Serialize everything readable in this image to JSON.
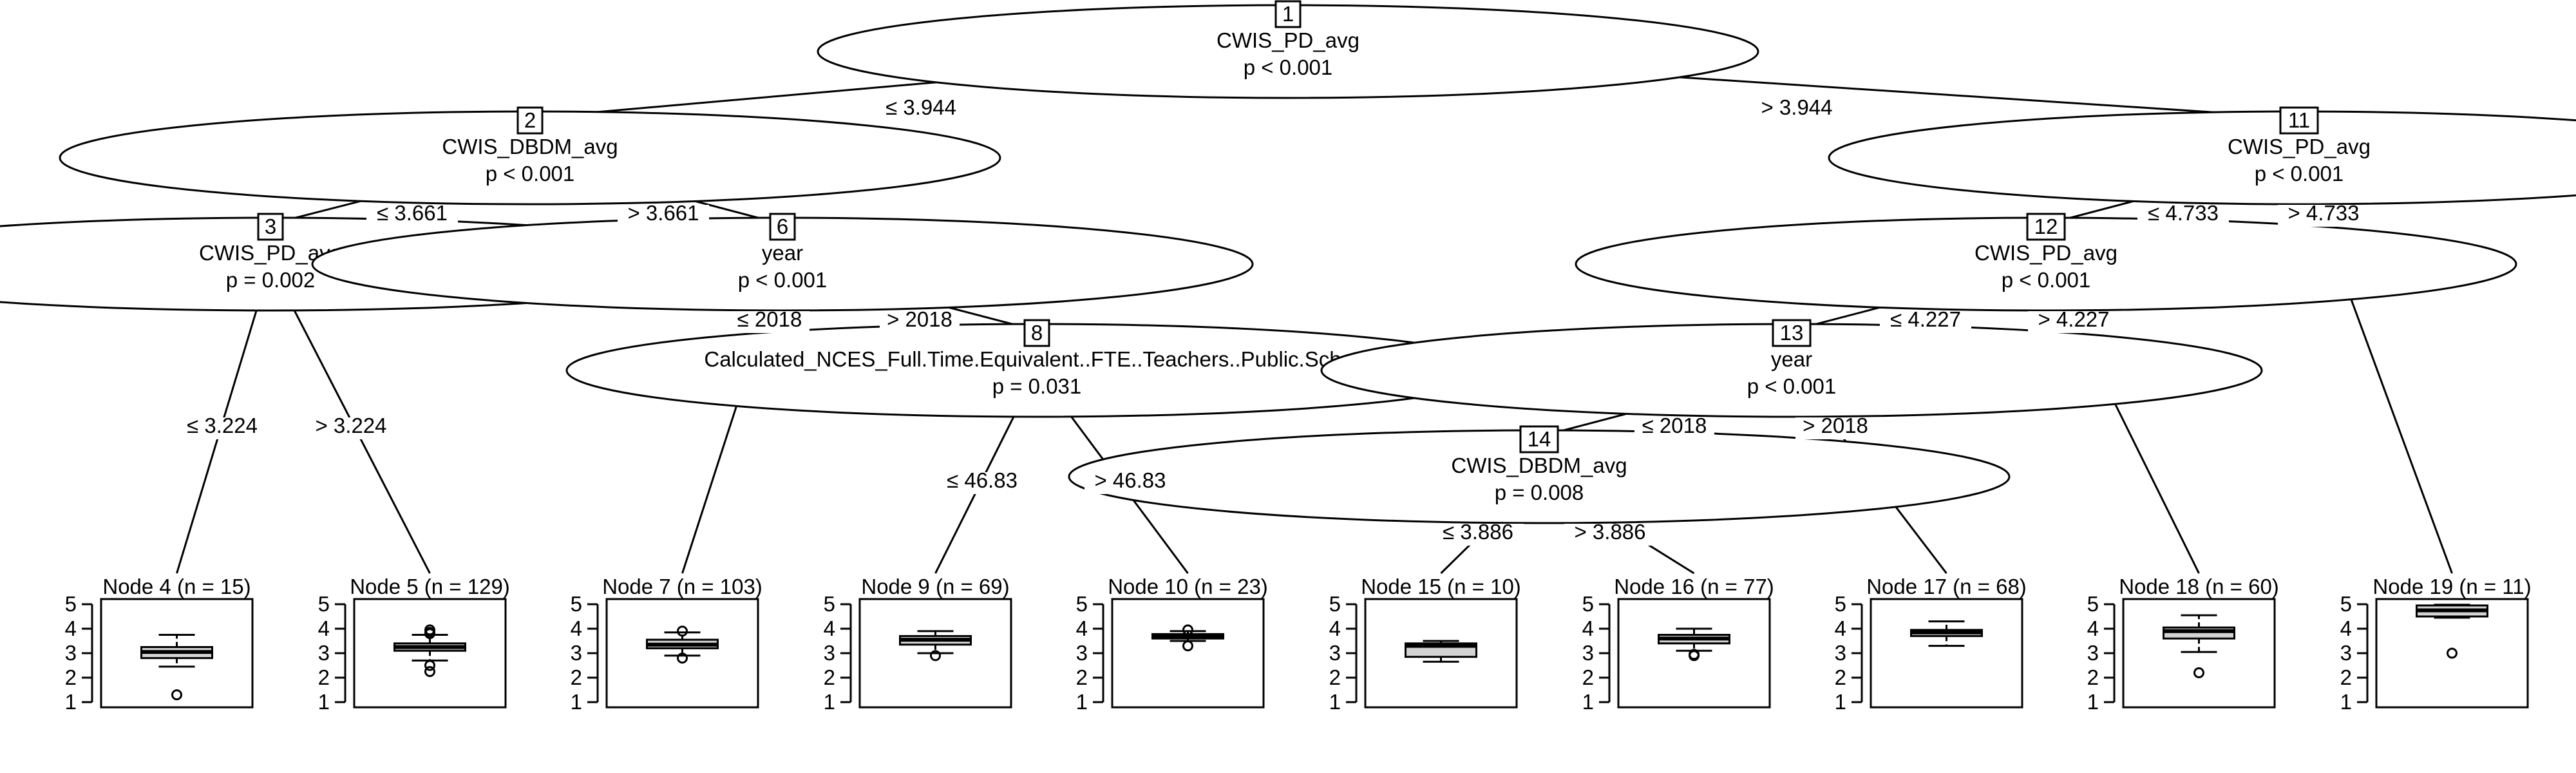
{
  "colors": {
    "box_fill": "#d3d3d3",
    "stroke": "#000000",
    "background": "#ffffff"
  },
  "edges": [
    {
      "from": "1",
      "to": "2",
      "label": "≤ 3.944"
    },
    {
      "from": "1",
      "to": "11",
      "label": "> 3.944"
    },
    {
      "from": "2",
      "to": "3",
      "label": "≤ 3.661"
    },
    {
      "from": "2",
      "to": "6",
      "label": "> 3.661"
    },
    {
      "from": "3",
      "to": "4",
      "label": "≤ 3.224"
    },
    {
      "from": "3",
      "to": "5",
      "label": "> 3.224"
    },
    {
      "from": "6",
      "to": "7",
      "label": "≤ 2018"
    },
    {
      "from": "6",
      "to": "8",
      "label": "> 2018"
    },
    {
      "from": "8",
      "to": "9",
      "label": "≤ 46.83"
    },
    {
      "from": "8",
      "to": "10",
      "label": "> 46.83"
    },
    {
      "from": "11",
      "to": "12",
      "label": "≤ 4.733"
    },
    {
      "from": "11",
      "to": "19",
      "label": "> 4.733"
    },
    {
      "from": "12",
      "to": "13",
      "label": "≤ 4.227"
    },
    {
      "from": "12",
      "to": "18",
      "label": "> 4.227"
    },
    {
      "from": "13",
      "to": "14",
      "label": "≤ 2018"
    },
    {
      "from": "13",
      "to": "17",
      "label": "> 2018"
    },
    {
      "from": "14",
      "to": "15",
      "label": "≤ 3.886"
    },
    {
      "from": "14",
      "to": "16",
      "label": "> 3.886"
    }
  ],
  "inner_nodes": [
    {
      "id": "1",
      "variable": "CWIS_PD_avg",
      "p": "p < 0.001"
    },
    {
      "id": "2",
      "variable": "CWIS_DBDM_avg",
      "p": "p < 0.001"
    },
    {
      "id": "3",
      "variable": "CWIS_PD_avg",
      "p": "p = 0.002"
    },
    {
      "id": "6",
      "variable": "year",
      "p": "p < 0.001"
    },
    {
      "id": "8",
      "variable": "Calculated_NCES_Full.Time.Equivalent..FTE..Teachers..Public.School",
      "p": "p = 0.031"
    },
    {
      "id": "11",
      "variable": "CWIS_PD_avg",
      "p": "p < 0.001"
    },
    {
      "id": "12",
      "variable": "CWIS_PD_avg",
      "p": "p < 0.001"
    },
    {
      "id": "13",
      "variable": "year",
      "p": "p < 0.001"
    },
    {
      "id": "14",
      "variable": "CWIS_DBDM_avg",
      "p": "p = 0.008"
    }
  ],
  "chart_data": {
    "type": "boxplot",
    "y_ticks": [
      "1",
      "2",
      "3",
      "4",
      "5"
    ],
    "ylim": [
      1,
      5
    ],
    "panels": [
      {
        "id": "4",
        "title": "Node 4 (n = 15)",
        "min": 2.45,
        "q1": 2.8,
        "median": 3.05,
        "q3": 3.25,
        "max": 3.75,
        "outliers": [
          1.3
        ]
      },
      {
        "id": "5",
        "title": "Node 5 (n = 129)",
        "min": 2.7,
        "q1": 3.1,
        "median": 3.25,
        "q3": 3.4,
        "max": 3.75,
        "outliers": [
          2.25,
          2.5,
          3.8,
          3.85,
          3.95
        ]
      },
      {
        "id": "7",
        "title": "Node 7 (n = 103)",
        "min": 2.9,
        "q1": 3.2,
        "median": 3.35,
        "q3": 3.55,
        "max": 3.85,
        "outliers": [
          2.8,
          3.9
        ]
      },
      {
        "id": "9",
        "title": "Node 9 (n = 69)",
        "min": 3.0,
        "q1": 3.35,
        "median": 3.55,
        "q3": 3.7,
        "max": 3.9,
        "outliers": [
          2.9
        ]
      },
      {
        "id": "10",
        "title": "Node 10 (n = 23)",
        "min": 3.5,
        "q1": 3.6,
        "median": 3.7,
        "q3": 3.78,
        "max": 3.9,
        "outliers": [
          3.3,
          3.95
        ]
      },
      {
        "id": "15",
        "title": "Node 15 (n = 10)",
        "min": 2.65,
        "q1": 2.85,
        "median": 3.3,
        "q3": 3.4,
        "max": 3.5,
        "outliers": []
      },
      {
        "id": "16",
        "title": "Node 16 (n = 77)",
        "min": 3.1,
        "q1": 3.4,
        "median": 3.6,
        "q3": 3.75,
        "max": 4.0,
        "outliers": [
          2.9,
          2.95
        ]
      },
      {
        "id": "17",
        "title": "Node 17 (n = 68)",
        "min": 3.3,
        "q1": 3.7,
        "median": 3.85,
        "q3": 3.95,
        "max": 4.3,
        "outliers": []
      },
      {
        "id": "18",
        "title": "Node 18 (n = 60)",
        "min": 3.05,
        "q1": 3.6,
        "median": 3.9,
        "q3": 4.05,
        "max": 4.55,
        "outliers": [
          2.2
        ]
      },
      {
        "id": "19",
        "title": "Node 19 (n = 11)",
        "min": 4.45,
        "q1": 4.5,
        "median": 4.75,
        "q3": 4.95,
        "max": 4.98,
        "outliers": [
          3.0
        ]
      }
    ]
  }
}
